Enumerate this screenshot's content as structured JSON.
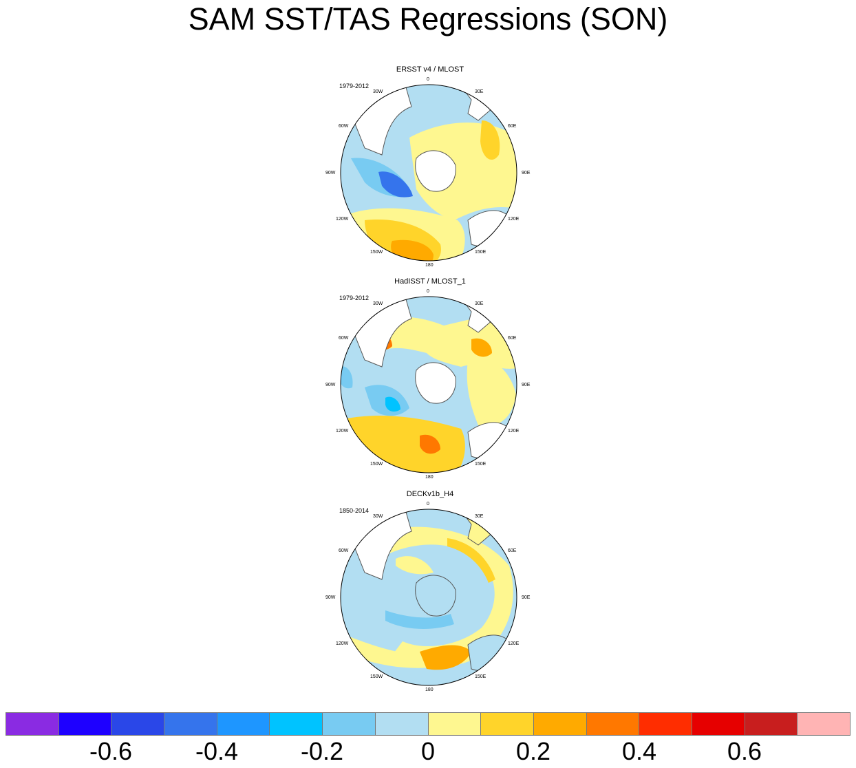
{
  "title": "SAM SST/TAS Regressions (SON)",
  "panels": [
    {
      "title": "ERSST v4 / MLOST",
      "period": "1979-2012"
    },
    {
      "title": "HadISST / MLOST_1",
      "period": "1979-2012"
    },
    {
      "title": "DECKv1b_H4",
      "period": "1850-2014"
    }
  ],
  "lon_labels": {
    "0": "0",
    "30E": "30E",
    "60E": "60E",
    "90E": "90E",
    "120E": "120E",
    "150E": "150E",
    "180": "180",
    "150W": "150W",
    "120W": "120W",
    "90W": "90W",
    "60W": "60W",
    "30W": "30W"
  },
  "colorbar": {
    "colors": [
      "#8a2be2",
      "#1e00ff",
      "#2a47e8",
      "#3574ec",
      "#1e96ff",
      "#00c3ff",
      "#78cbf2",
      "#b2def2",
      "#fef790",
      "#ffd42a",
      "#ffaa00",
      "#ff7800",
      "#ff2d00",
      "#e60000",
      "#c81e1e",
      "#ffb4b4"
    ],
    "tick_labels": [
      "-0.6",
      "-0.4",
      "-0.2",
      "0",
      "0.2",
      "0.4",
      "0.6"
    ]
  },
  "chart_data": [
    {
      "type": "heatmap",
      "projection": "polar-stereographic (Southern Hemisphere)",
      "title": "ERSST v4 / MLOST",
      "period": "1979-2012",
      "value_range": [
        -0.8,
        0.8
      ],
      "levels": [
        -0.7,
        -0.6,
        -0.5,
        -0.4,
        -0.3,
        -0.2,
        -0.1,
        0,
        0.1,
        0.2,
        0.3,
        0.4,
        0.5,
        0.6,
        0.7
      ]
    },
    {
      "type": "heatmap",
      "projection": "polar-stereographic (Southern Hemisphere)",
      "title": "HadISST / MLOST_1",
      "period": "1979-2012",
      "value_range": [
        -0.8,
        0.8
      ],
      "levels": [
        -0.7,
        -0.6,
        -0.5,
        -0.4,
        -0.3,
        -0.2,
        -0.1,
        0,
        0.1,
        0.2,
        0.3,
        0.4,
        0.5,
        0.6,
        0.7
      ]
    },
    {
      "type": "heatmap",
      "projection": "polar-stereographic (Southern Hemisphere)",
      "title": "DECKv1b_H4",
      "period": "1850-2014",
      "value_range": [
        -0.8,
        0.8
      ],
      "levels": [
        -0.7,
        -0.6,
        -0.5,
        -0.4,
        -0.3,
        -0.2,
        -0.1,
        0,
        0.1,
        0.2,
        0.3,
        0.4,
        0.5,
        0.6,
        0.7
      ]
    }
  ]
}
